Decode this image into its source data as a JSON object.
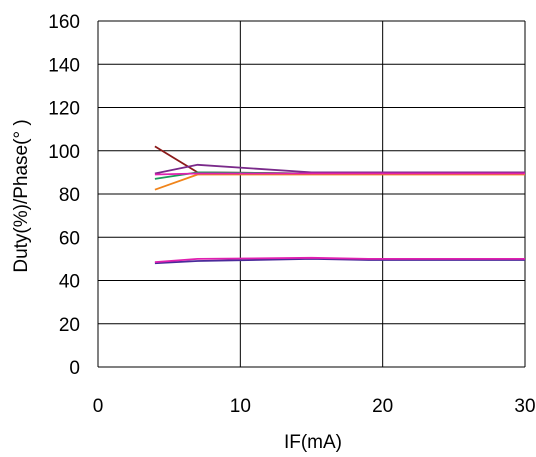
{
  "chart_data": {
    "type": "line",
    "xlabel": "IF(mA)",
    "ylabel": "Duty(%)/Phase(° )",
    "xlim": [
      0,
      30
    ],
    "ylim": [
      0,
      160
    ],
    "xticks": [
      "0",
      "10",
      "20",
      "30"
    ],
    "yticks": [
      "0",
      "20",
      "40",
      "60",
      "80",
      "100",
      "120",
      "140",
      "160"
    ],
    "grid": true,
    "legend": "none",
    "series": [
      {
        "color": "#8b1a1a",
        "x": [
          4,
          7,
          15,
          19,
          30
        ],
        "y": [
          102,
          90,
          89.5,
          89.5,
          89.5
        ]
      },
      {
        "color": "#1a9a5a",
        "x": [
          4,
          7,
          15,
          19,
          30
        ],
        "y": [
          87,
          90,
          89.5,
          89.5,
          89.5
        ]
      },
      {
        "color": "#f0841a",
        "x": [
          4,
          7,
          15,
          19,
          30
        ],
        "y": [
          82,
          89,
          89,
          89,
          89
        ]
      },
      {
        "color": "#7a2a8a",
        "x": [
          4,
          7,
          15,
          19,
          30
        ],
        "y": [
          89.5,
          93.5,
          90,
          90,
          90
        ]
      },
      {
        "color": "#e020b0",
        "x": [
          4,
          7,
          15,
          19,
          30
        ],
        "y": [
          89,
          89.5,
          89.5,
          89.5,
          89.5
        ]
      },
      {
        "color": "#4a2a9a",
        "x": [
          4,
          7,
          15,
          19,
          30
        ],
        "y": [
          48,
          49,
          50,
          49.5,
          49.5
        ]
      },
      {
        "color": "#e020b0",
        "x": [
          4,
          7,
          15,
          19,
          30
        ],
        "y": [
          48.5,
          50,
          50.5,
          50,
          50
        ]
      }
    ]
  }
}
